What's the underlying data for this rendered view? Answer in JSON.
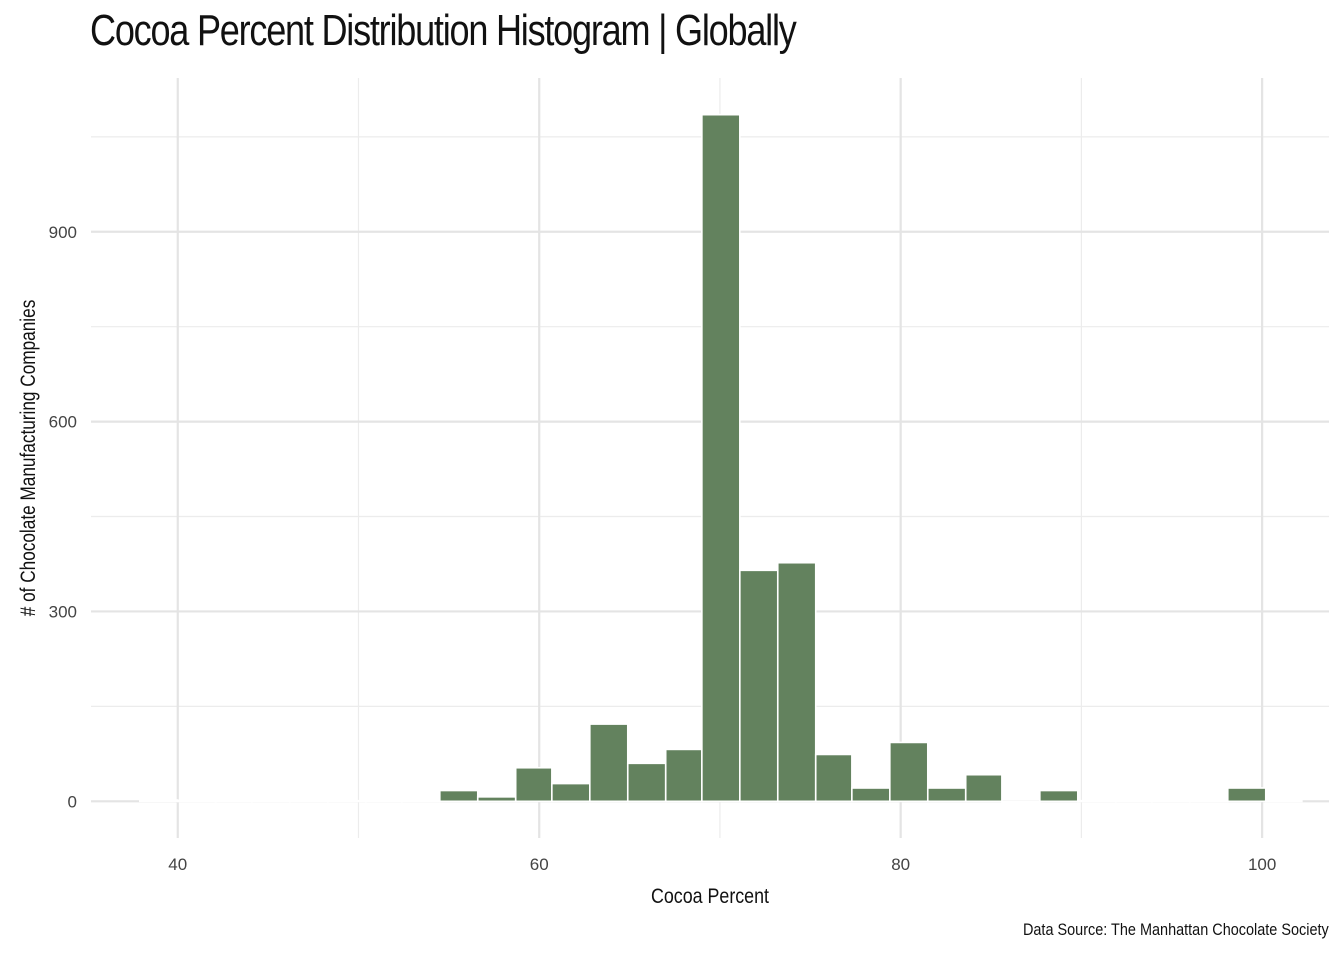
{
  "chart_data": {
    "type": "bar",
    "title": "Cocoa Percent Distribution Histogram | Globally",
    "xlabel": "Cocoa Percent",
    "ylabel": "# of Chocolate Manufacturing Companies",
    "caption": "Data Source: The Manhattan Chocolate Society",
    "xlim": [
      35.2,
      103.7
    ],
    "ylim": [
      -58,
      1143
    ],
    "x_ticks": [
      40,
      60,
      80,
      100
    ],
    "y_ticks": [
      0,
      300,
      600,
      900
    ],
    "bar_color": "#63825e",
    "grid": true,
    "bin_width": 2.07,
    "bins": [
      {
        "x0": 37.9,
        "x1": 40.0,
        "count": 2
      },
      {
        "x0": 40.0,
        "x1": 42.1,
        "count": 1
      },
      {
        "x0": 42.1,
        "x1": 44.1,
        "count": 1
      },
      {
        "x0": 44.1,
        "x1": 46.2,
        "count": 1
      },
      {
        "x0": 46.2,
        "x1": 48.3,
        "count": 1
      },
      {
        "x0": 48.3,
        "x1": 50.4,
        "count": 1
      },
      {
        "x0": 50.4,
        "x1": 52.4,
        "count": 1
      },
      {
        "x0": 52.4,
        "x1": 54.5,
        "count": 1
      },
      {
        "x0": 54.5,
        "x1": 56.6,
        "count": 17
      },
      {
        "x0": 56.6,
        "x1": 58.7,
        "count": 7
      },
      {
        "x0": 58.7,
        "x1": 60.7,
        "count": 53
      },
      {
        "x0": 60.7,
        "x1": 62.8,
        "count": 28
      },
      {
        "x0": 62.8,
        "x1": 64.9,
        "count": 122
      },
      {
        "x0": 64.9,
        "x1": 67.0,
        "count": 60
      },
      {
        "x0": 67.0,
        "x1": 69.0,
        "count": 82
      },
      {
        "x0": 69.0,
        "x1": 71.1,
        "count": 1085
      },
      {
        "x0": 71.1,
        "x1": 73.2,
        "count": 365
      },
      {
        "x0": 73.2,
        "x1": 75.3,
        "count": 377
      },
      {
        "x0": 75.3,
        "x1": 77.3,
        "count": 74
      },
      {
        "x0": 77.3,
        "x1": 79.4,
        "count": 21
      },
      {
        "x0": 79.4,
        "x1": 81.5,
        "count": 93
      },
      {
        "x0": 81.5,
        "x1": 83.6,
        "count": 21
      },
      {
        "x0": 83.6,
        "x1": 85.6,
        "count": 42
      },
      {
        "x0": 85.6,
        "x1": 87.7,
        "count": 0
      },
      {
        "x0": 87.7,
        "x1": 89.8,
        "count": 17
      },
      {
        "x0": 89.8,
        "x1": 91.9,
        "count": 1
      },
      {
        "x0": 91.9,
        "x1": 93.9,
        "count": 1
      },
      {
        "x0": 93.9,
        "x1": 96.0,
        "count": 1
      },
      {
        "x0": 96.0,
        "x1": 98.1,
        "count": 1
      },
      {
        "x0": 98.1,
        "x1": 100.2,
        "count": 21
      },
      {
        "x0": 100.2,
        "x1": 102.2,
        "count": 1
      }
    ]
  }
}
